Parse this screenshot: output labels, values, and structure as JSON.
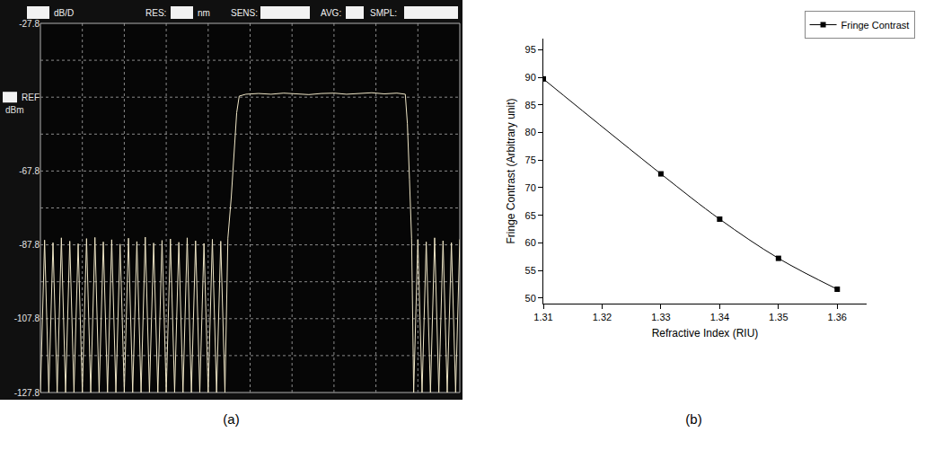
{
  "chart_data": [
    {
      "caption": "(a)",
      "type": "line",
      "header": [
        "dB/D",
        "RES:",
        "nm",
        "SENS:",
        "AVG:",
        "SMPL:"
      ],
      "ylabel": "dBm",
      "x": [
        0,
        0.1,
        0.2,
        0.3,
        0.4,
        0.5,
        0.6,
        0.7,
        0.8,
        0.9,
        1,
        1.1,
        1.2,
        1.3,
        1.4,
        1.5,
        1.6,
        1.7,
        1.8,
        1.9,
        2,
        2.1,
        2.2,
        2.3,
        2.4,
        2.5,
        2.6,
        2.7,
        2.8,
        2.9,
        3,
        3.1,
        3.2,
        3.3,
        3.4,
        3.5,
        3.6,
        3.7,
        3.8,
        3.9,
        4,
        4.1,
        4.2,
        4.3,
        4.4,
        4.47,
        4.55,
        4.62,
        4.68,
        4.74,
        4.9,
        5.2,
        5.5,
        5.8,
        6.1,
        6.4,
        6.7,
        7,
        7.3,
        7.6,
        7.9,
        8.2,
        8.5,
        8.7,
        8.75,
        8.8,
        8.85,
        8.9,
        9,
        9.1,
        9.2,
        9.3,
        9.4,
        9.5,
        9.6,
        9.7,
        9.8,
        9.9,
        10
      ],
      "values": [
        -127.8,
        -86.5,
        -127.8,
        -87.2,
        -127.8,
        -85.9,
        -127.8,
        -86.8,
        -127.8,
        -87.5,
        -127.8,
        -86.1,
        -127.8,
        -85.8,
        -127.8,
        -87.0,
        -127.8,
        -86.4,
        -127.8,
        -87.6,
        -127.8,
        -86.0,
        -127.8,
        -86.9,
        -127.8,
        -85.7,
        -127.8,
        -87.3,
        -127.8,
        -86.6,
        -127.8,
        -86.2,
        -127.8,
        -87.1,
        -127.8,
        -85.9,
        -127.8,
        -86.7,
        -127.8,
        -87.4,
        -127.8,
        -86.3,
        -127.8,
        -86.8,
        -127.8,
        -86.0,
        -75.0,
        -62.0,
        -52.0,
        -47.5,
        -47.0,
        -46.8,
        -47.0,
        -46.7,
        -46.9,
        -47.1,
        -46.8,
        -46.7,
        -47.0,
        -46.8,
        -46.6,
        -46.9,
        -46.7,
        -47.0,
        -55.0,
        -70.0,
        -86.0,
        -127.8,
        -86.4,
        -127.8,
        -87.0,
        -127.8,
        -85.9,
        -127.8,
        -86.7,
        -127.8,
        -87.2,
        -127.8,
        -86.3
      ],
      "color": "#efe6c6",
      "xlim": [
        0,
        10
      ],
      "ylim": [
        -127.8,
        -27.8
      ],
      "yticks": [
        -27.8,
        {
          "value": -47.8,
          "label": "REF"
        },
        -67.8,
        -87.8,
        -107.8,
        -127.8
      ],
      "tick_labels": "y",
      "grid": true
    },
    {
      "caption": "(b)",
      "type": "line",
      "xlabel": "Refractive Index (RIU)",
      "ylabel": "Fringe Contrast (Arbitrary unit)",
      "x": [
        1.31,
        1.33,
        1.34,
        1.35,
        1.36
      ],
      "series": [
        {
          "name": "Fringe Contrast",
          "color": "#000000",
          "values": [
            89.7,
            72.5,
            64.3,
            57.2,
            51.6
          ],
          "marker": "square",
          "line_style": "solid"
        }
      ],
      "xlim": [
        1.31,
        1.365
      ],
      "ylim": [
        49,
        97
      ],
      "xticks": [
        1.31,
        1.32,
        1.33,
        1.34,
        1.35,
        1.36
      ],
      "yticks": [
        50,
        55,
        60,
        65,
        70,
        75,
        80,
        85,
        90,
        95
      ],
      "legend": "top right",
      "grid": false
    }
  ]
}
